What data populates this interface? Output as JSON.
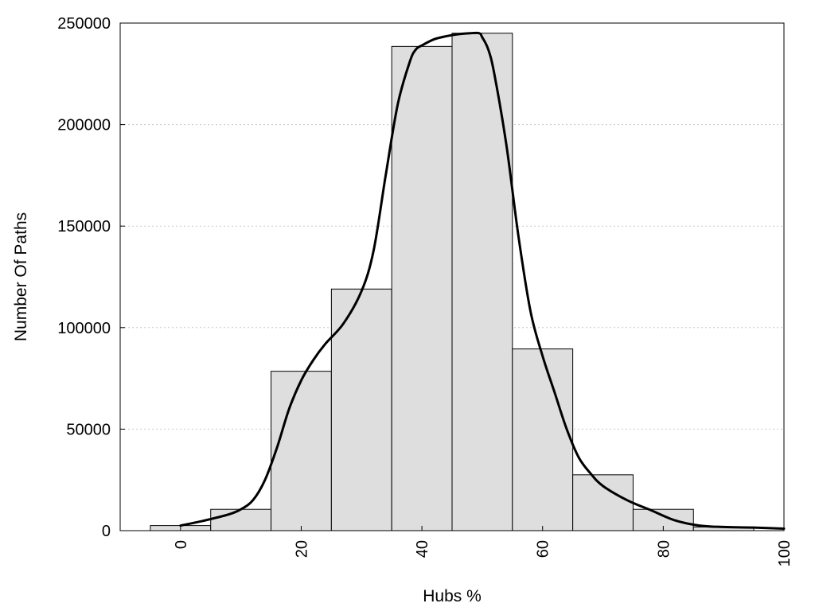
{
  "chart_data": {
    "type": "bar",
    "title": "",
    "xlabel": "Hubs %",
    "ylabel": "Number Of Paths",
    "xlim": [
      -10,
      100
    ],
    "ylim": [
      0,
      250000
    ],
    "x_ticks": [
      0,
      20,
      40,
      60,
      80,
      100
    ],
    "y_ticks": [
      0,
      50000,
      100000,
      150000,
      200000,
      250000
    ],
    "grid": "horizontal-dotted",
    "bars": {
      "x": [
        0,
        10,
        20,
        30,
        40,
        50,
        60,
        70,
        80,
        90
      ],
      "width": 10,
      "values": [
        2500,
        10500,
        78500,
        119000,
        238500,
        245000,
        89500,
        27500,
        10500,
        1800
      ],
      "color": "#dedede"
    },
    "density_curve": {
      "color": "#000000",
      "x": [
        0,
        4,
        8,
        10,
        12,
        14,
        16,
        18,
        20,
        22,
        24,
        27,
        30,
        32,
        34,
        36,
        38,
        39,
        40,
        42,
        44,
        46,
        48,
        49.5,
        50,
        51,
        52,
        54,
        56,
        58,
        60,
        62,
        64,
        66,
        68,
        70,
        74,
        78,
        82,
        86,
        90,
        95,
        100
      ],
      "y": [
        2500,
        5000,
        8000,
        10500,
        15000,
        25000,
        41000,
        60000,
        74000,
        84000,
        92000,
        102000,
        118000,
        138000,
        175000,
        210000,
        231000,
        237000,
        239000,
        242000,
        243500,
        244500,
        245000,
        245000,
        243000,
        237000,
        225000,
        190000,
        145000,
        108000,
        86000,
        68000,
        50000,
        36000,
        28000,
        22000,
        15000,
        10000,
        5000,
        2500,
        1800,
        1500,
        1000
      ]
    }
  }
}
